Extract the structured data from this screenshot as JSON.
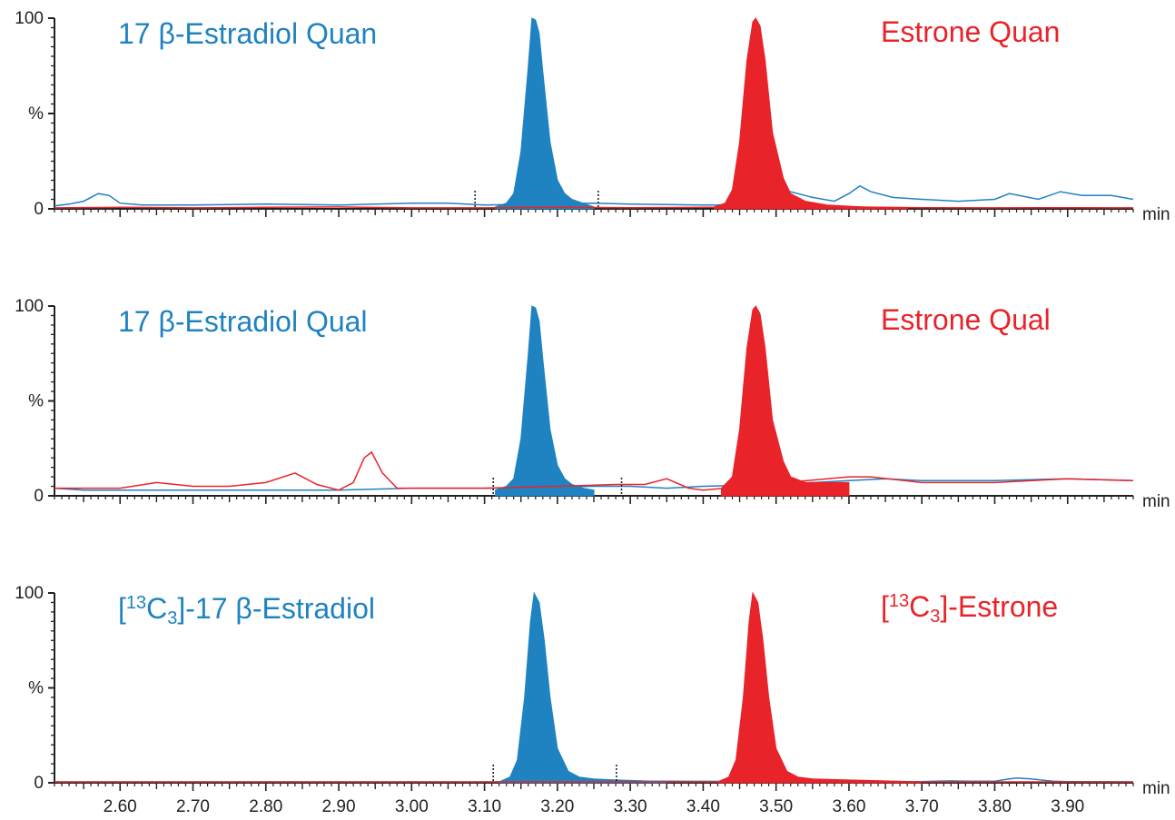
{
  "colors": {
    "estradiol": "#1f83c1",
    "estrone": "#e8242a",
    "axis": "#222222"
  },
  "chart_data": [
    {
      "type": "line",
      "title_left": "17 β-Estradiol Quan",
      "title_right": "Estrone Quan",
      "ylim": [
        0,
        100
      ],
      "y_ticks": [
        "100",
        "%",
        "0"
      ],
      "xlim": [
        2.51,
        3.99
      ],
      "x_unit": "min",
      "x_ticks": [
        "2.60",
        "2.70",
        "2.80",
        "2.90",
        "3.00",
        "3.10",
        "3.20",
        "3.30",
        "3.40",
        "3.50",
        "3.60",
        "3.70",
        "3.80",
        "3.90"
      ],
      "x_tick_values": [
        2.6,
        2.7,
        2.8,
        2.9,
        3.0,
        3.1,
        3.2,
        3.3,
        3.4,
        3.5,
        3.6,
        3.7,
        3.8,
        3.9
      ],
      "show_x_tick_labels": false,
      "integration_markers": [
        3.087,
        3.256
      ],
      "series": [
        {
          "color_key": "estradiol",
          "peak": {
            "x": [
              3.115,
              3.13,
              3.14,
              3.15,
              3.16,
              3.165,
              3.17,
              3.175,
              3.18,
              3.19,
              3.2,
              3.21,
              3.22,
              3.235,
              3.25
            ],
            "y": [
              1,
              3,
              8,
              30,
              75,
              100,
              99,
              92,
              72,
              35,
              15,
              8,
              5,
              3,
              1
            ]
          },
          "trace": {
            "x": [
              2.51,
              2.53,
              2.55,
              2.57,
              2.585,
              2.6,
              2.63,
              2.7,
              2.8,
              2.9,
              3.0,
              3.05,
              3.1,
              3.25,
              3.3,
              3.4,
              3.45,
              3.52,
              3.55,
              3.58,
              3.6,
              3.615,
              3.63,
              3.66,
              3.7,
              3.75,
              3.8,
              3.82,
              3.86,
              3.89,
              3.92,
              3.96,
              3.99
            ],
            "y": [
              1.5,
              2.5,
              4,
              8,
              7,
              3,
              2,
              2,
              2.5,
              2,
              3,
              3,
              2,
              3,
              2.5,
              2,
              2,
              9,
              6,
              4,
              8,
              12,
              9,
              6,
              5,
              4,
              5,
              8,
              5,
              9,
              7,
              7,
              5
            ]
          }
        },
        {
          "color_key": "estrone",
          "peak": {
            "x": [
              3.415,
              3.43,
              3.44,
              3.45,
              3.46,
              3.468,
              3.472,
              3.478,
              3.485,
              3.495,
              3.51,
              3.52,
              3.54,
              3.57,
              3.62,
              3.68
            ],
            "y": [
              1,
              3,
              10,
              35,
              78,
              98,
              100,
              96,
              78,
              40,
              16,
              8,
              4,
              2,
              1,
              0.5
            ]
          },
          "trace": {
            "x": [
              2.51,
              2.6,
              2.7,
              2.8,
              2.9,
              3.0,
              3.1,
              3.2,
              3.3,
              3.4,
              3.6,
              3.7,
              3.8,
              3.9,
              3.99
            ],
            "y": [
              0.5,
              0.8,
              0.5,
              0.8,
              1,
              0.5,
              0.5,
              0.8,
              0.6,
              0.8,
              1,
              0.6,
              0.5,
              0.6,
              0.5
            ]
          }
        }
      ]
    },
    {
      "type": "line",
      "title_left": "17 β-Estradiol Qual",
      "title_right": "Estrone Qual",
      "ylim": [
        0,
        100
      ],
      "y_ticks": [
        "100",
        "%",
        "0"
      ],
      "xlim": [
        2.51,
        3.99
      ],
      "x_unit": "min",
      "x_ticks": [
        "2.60",
        "2.70",
        "2.80",
        "2.90",
        "3.00",
        "3.10",
        "3.20",
        "3.30",
        "3.40",
        "3.50",
        "3.60",
        "3.70",
        "3.80",
        "3.90"
      ],
      "x_tick_values": [
        2.6,
        2.7,
        2.8,
        2.9,
        3.0,
        3.1,
        3.2,
        3.3,
        3.4,
        3.5,
        3.6,
        3.7,
        3.8,
        3.9
      ],
      "show_x_tick_labels": false,
      "integration_markers": [
        3.112,
        3.288
      ],
      "series": [
        {
          "color_key": "estradiol",
          "peak": {
            "x": [
              3.115,
              3.13,
              3.14,
              3.15,
              3.16,
              3.165,
              3.17,
              3.175,
              3.18,
              3.19,
              3.2,
              3.21,
              3.22,
              3.235,
              3.25
            ],
            "y": [
              3,
              5,
              9,
              30,
              75,
              100,
              99,
              92,
              72,
              35,
              16,
              9,
              6,
              4,
              3
            ]
          },
          "trace": {
            "x": [
              2.51,
              2.55,
              2.6,
              2.7,
              2.8,
              2.9,
              3.0,
              3.1,
              3.25,
              3.3,
              3.35,
              3.4,
              3.5,
              3.6,
              3.65,
              3.7,
              3.8,
              3.9,
              3.99
            ],
            "y": [
              4,
              3,
              3,
              3,
              3,
              3,
              4,
              4,
              5,
              5,
              4,
              5,
              6,
              8,
              9,
              8,
              8,
              9,
              8
            ]
          }
        },
        {
          "color_key": "estrone",
          "peak": {
            "x": [
              3.425,
              3.44,
              3.45,
              3.46,
              3.468,
              3.472,
              3.478,
              3.485,
              3.495,
              3.51,
              3.52,
              3.54,
              3.57,
              3.6
            ],
            "y": [
              4,
              10,
              35,
              78,
              98,
              100,
              96,
              78,
              40,
              18,
              10,
              7,
              7,
              7
            ]
          },
          "trace": {
            "x": [
              2.51,
              2.6,
              2.65,
              2.7,
              2.75,
              2.8,
              2.84,
              2.87,
              2.9,
              2.92,
              2.935,
              2.945,
              2.96,
              2.98,
              3.0,
              3.1,
              3.2,
              3.28,
              3.32,
              3.35,
              3.38,
              3.4,
              3.6,
              3.63,
              3.7,
              3.8,
              3.9,
              3.99
            ],
            "y": [
              4,
              4,
              7,
              5,
              5,
              7,
              12,
              6,
              3,
              7,
              20,
              23,
              12,
              4,
              4,
              4,
              5,
              6,
              6,
              9,
              4,
              3,
              10,
              10,
              7,
              7,
              9,
              8
            ]
          }
        }
      ]
    },
    {
      "type": "line",
      "title_left": "[13C3]-17 β-Estradiol",
      "title_right": "[13C3]-Estrone",
      "ylim": [
        0,
        100
      ],
      "y_ticks": [
        "100",
        "%",
        "0"
      ],
      "xlim": [
        2.51,
        3.99
      ],
      "x_unit": "min",
      "x_ticks": [
        "2.60",
        "2.70",
        "2.80",
        "2.90",
        "3.00",
        "3.10",
        "3.20",
        "3.30",
        "3.40",
        "3.50",
        "3.60",
        "3.70",
        "3.80",
        "3.90"
      ],
      "x_tick_values": [
        2.6,
        2.7,
        2.8,
        2.9,
        3.0,
        3.1,
        3.2,
        3.3,
        3.4,
        3.5,
        3.6,
        3.7,
        3.8,
        3.9
      ],
      "show_x_tick_labels": true,
      "integration_markers": [
        3.112,
        3.281
      ],
      "series": [
        {
          "color_key": "estradiol",
          "peak": {
            "x": [
              3.12,
              3.135,
              3.145,
              3.155,
              3.163,
              3.168,
              3.175,
              3.182,
              3.19,
              3.2,
              3.215,
              3.23,
              3.25,
              3.28,
              3.32,
              3.35
            ],
            "y": [
              0.5,
              3,
              12,
              45,
              85,
              100,
              95,
              75,
              45,
              18,
              6,
              3,
              2,
              1.5,
              1,
              0.5
            ]
          },
          "trace": {
            "x": [
              2.51,
              3.0,
              3.1,
              3.35,
              3.7,
              3.74,
              3.76,
              3.8,
              3.82,
              3.83,
              3.85,
              3.88,
              3.9,
              3.99
            ],
            "y": [
              0.5,
              0.5,
              0.5,
              0.8,
              0.6,
              1,
              0.8,
              0.8,
              2,
              2.5,
              2,
              0.8,
              0.6,
              0.5
            ]
          }
        },
        {
          "color_key": "estrone",
          "peak": {
            "x": [
              3.42,
              3.435,
              3.445,
              3.455,
              3.463,
              3.468,
              3.475,
              3.482,
              3.49,
              3.5,
              3.515,
              3.53,
              3.55,
              3.6,
              3.65,
              3.7
            ],
            "y": [
              0.5,
              3,
              12,
              45,
              85,
              100,
              95,
              75,
              45,
              18,
              6,
              3,
              2,
              1.5,
              1,
              0.5
            ]
          },
          "trace": {
            "x": [
              2.51,
              3.0,
              3.5,
              3.99
            ],
            "y": [
              0.5,
              0.5,
              0.5,
              0.5
            ]
          }
        }
      ]
    }
  ]
}
